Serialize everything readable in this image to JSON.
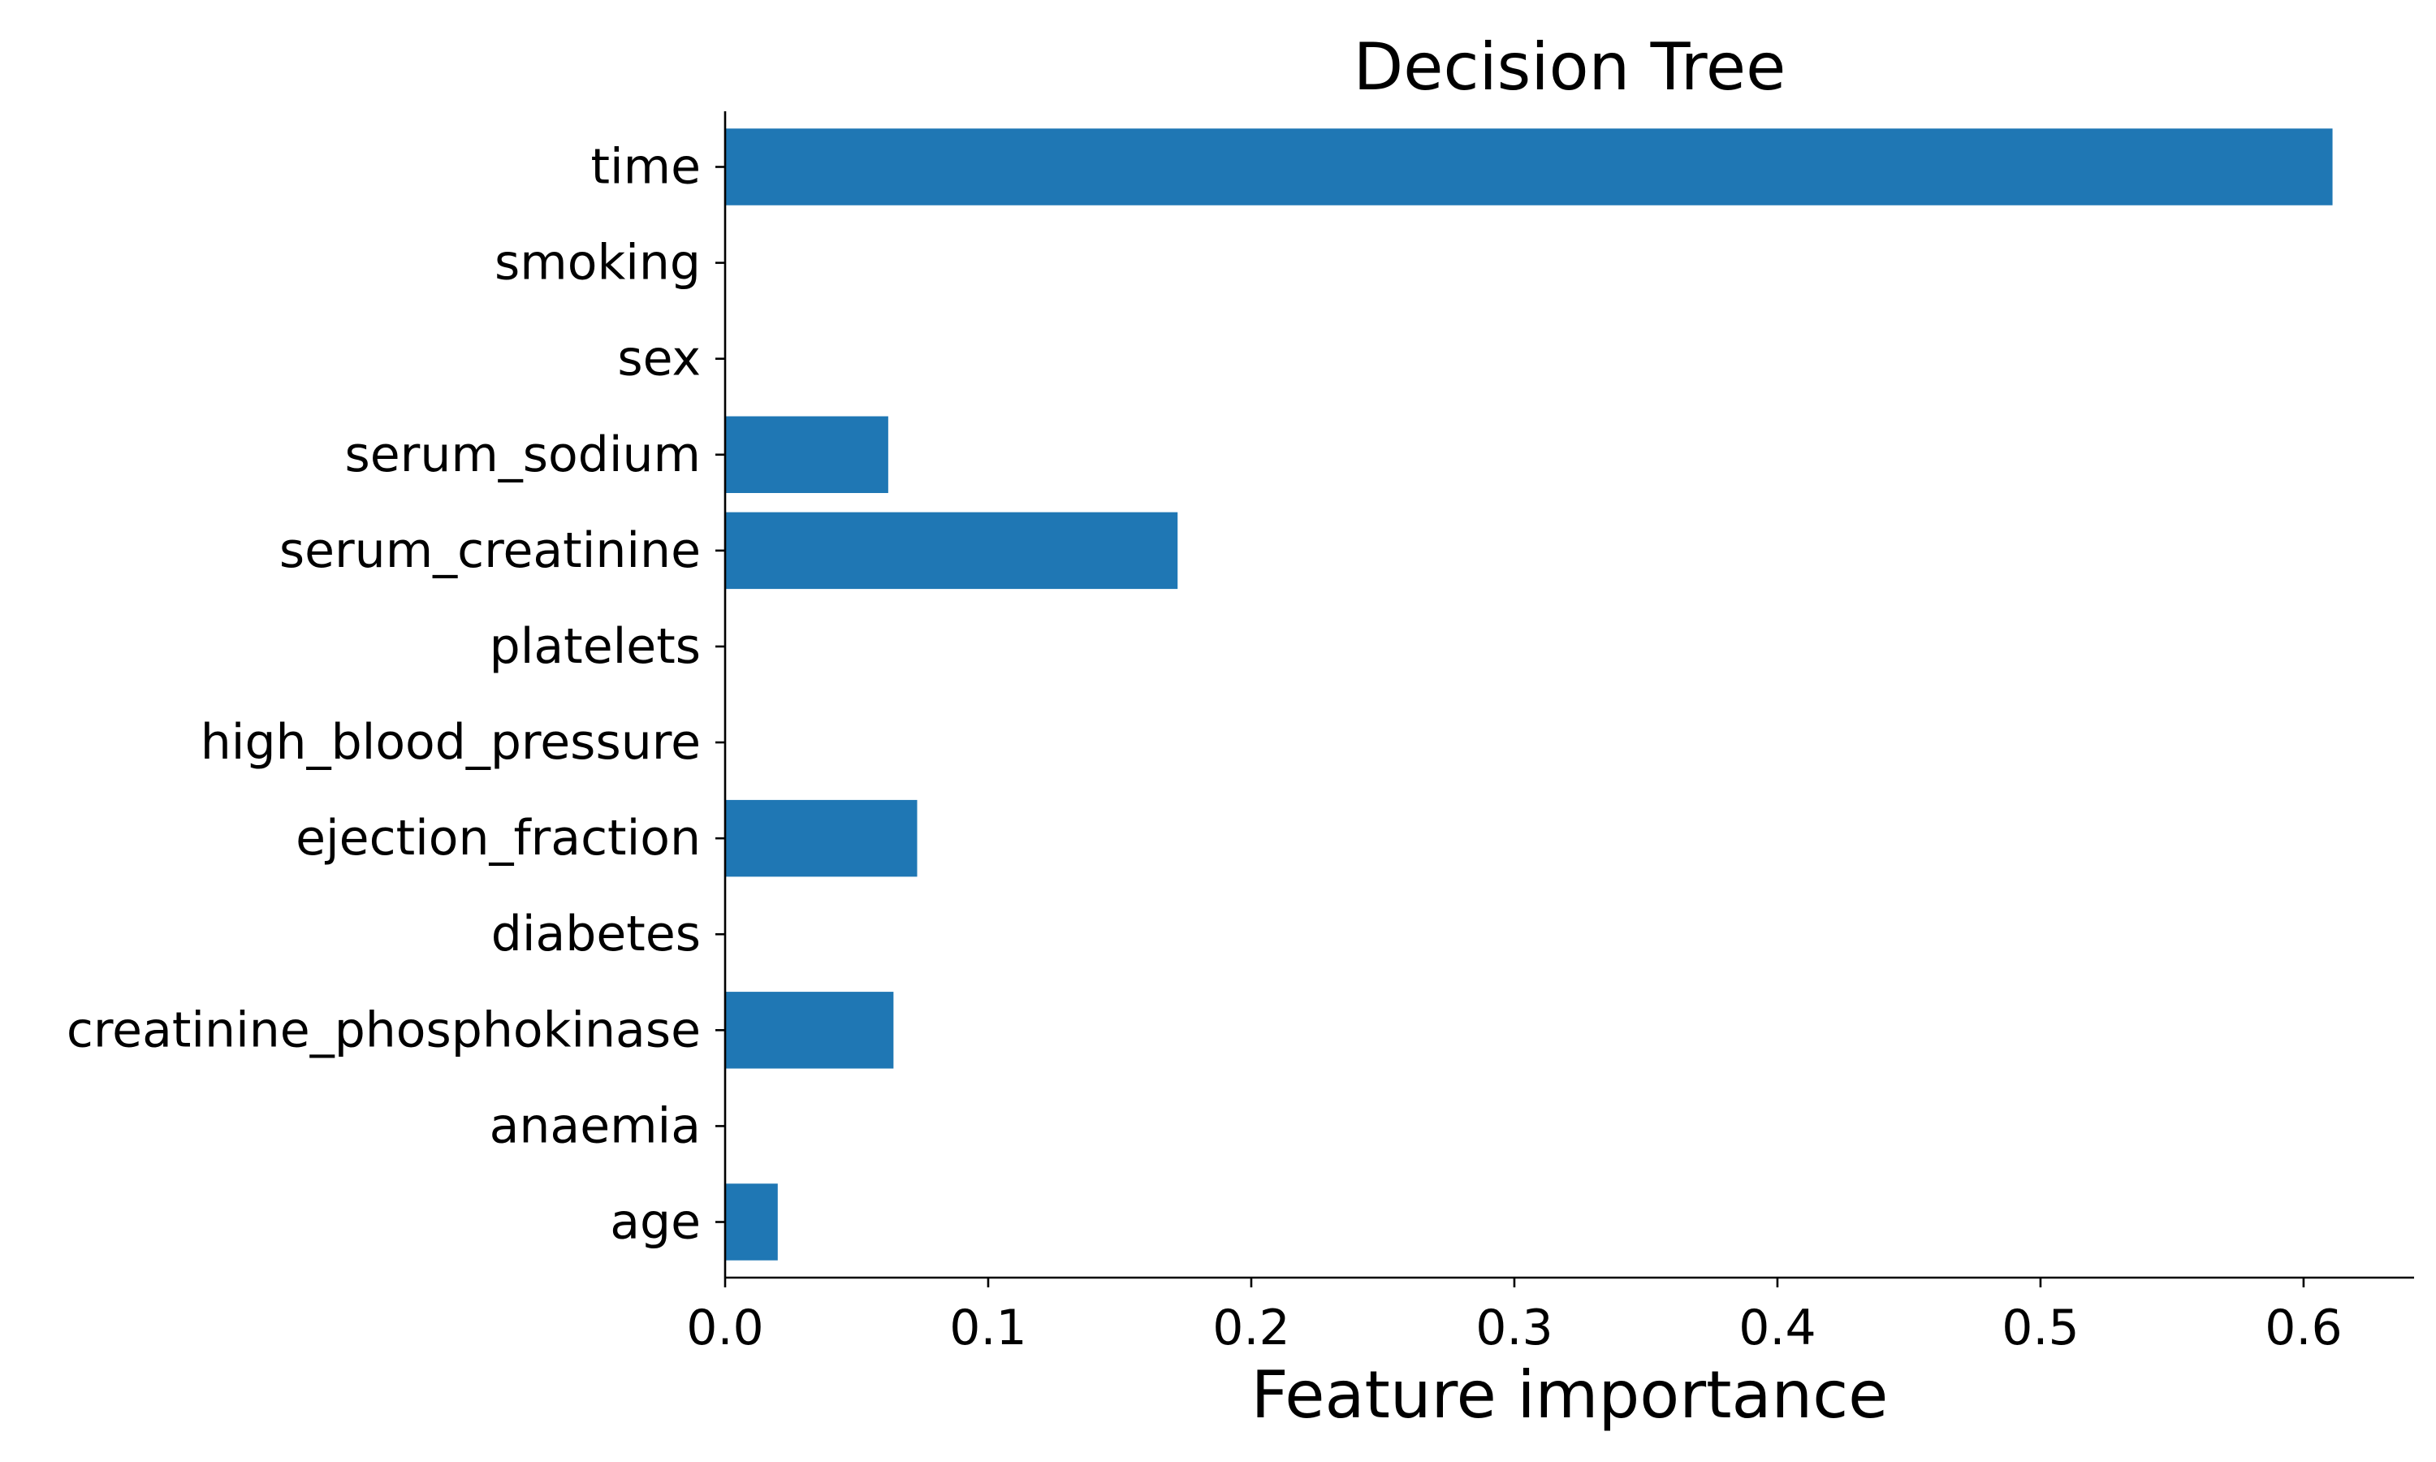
{
  "chart_data": {
    "type": "bar",
    "orientation": "horizontal",
    "title": "Decision Tree",
    "xlabel": "Feature importance",
    "ylabel": "",
    "categories": [
      "age",
      "anaemia",
      "creatinine_phosphokinase",
      "diabetes",
      "ejection_fraction",
      "high_blood_pressure",
      "platelets",
      "serum_creatinine",
      "serum_sodium",
      "sex",
      "smoking",
      "time"
    ],
    "values": [
      0.02,
      0.0,
      0.064,
      0.0,
      0.073,
      0.0,
      0.0,
      0.172,
      0.062,
      0.0,
      0.0,
      0.611
    ],
    "xlim": [
      0.0,
      0.642
    ],
    "xticks": [
      0.0,
      0.1,
      0.2,
      0.3,
      0.4,
      0.5,
      0.6
    ],
    "xtick_labels": [
      "0.0",
      "0.1",
      "0.2",
      "0.3",
      "0.4",
      "0.5",
      "0.6"
    ],
    "bar_color": "#1f77b4",
    "grid": false,
    "legend": "none"
  }
}
